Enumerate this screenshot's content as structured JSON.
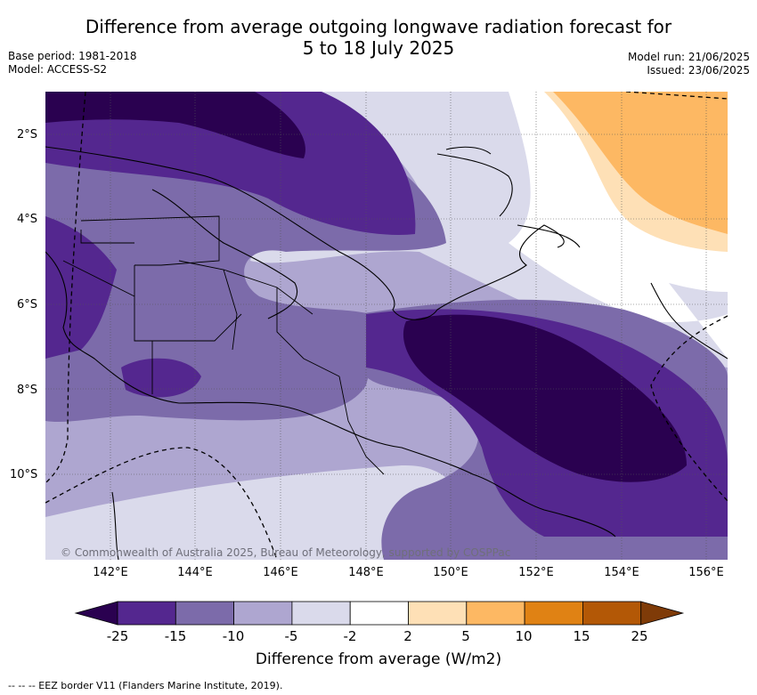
{
  "title_line1": "Difference from average outgoing longwave radiation forecast for",
  "title_line2": "5 to 18 July 2025",
  "meta": {
    "base_period": "Base period: 1981-2018",
    "model": "Model: ACCESS-S2",
    "model_run": "Model run: 21/06/2025",
    "issued": "Issued: 23/06/2025"
  },
  "axes": {
    "lat_labels": [
      "2°S",
      "4°S",
      "6°S",
      "8°S",
      "10°S"
    ],
    "lon_labels": [
      "142°E",
      "144°E",
      "146°E",
      "148°E",
      "150°E",
      "152°E",
      "154°E",
      "156°E"
    ]
  },
  "copyright": "© Commonwealth of Australia 2025, Bureau of Meteorology, supported by COSPPac",
  "colorbar": {
    "label": "Difference from average (W/m2)",
    "ticks": [
      "-25",
      "-15",
      "-10",
      "-5",
      "-2",
      "2",
      "5",
      "10",
      "15",
      "25"
    ],
    "colors": [
      "#2a0150",
      "#54278f",
      "#7c6baa",
      "#aea6d0",
      "#dadaeb",
      "#ffffff",
      "#fee0b6",
      "#fdb863",
      "#e08214",
      "#b35806",
      "#7f3b08"
    ]
  },
  "legend_note": "--  --  -- EEZ border V11 (Flanders Marine Institute, 2019)."
}
